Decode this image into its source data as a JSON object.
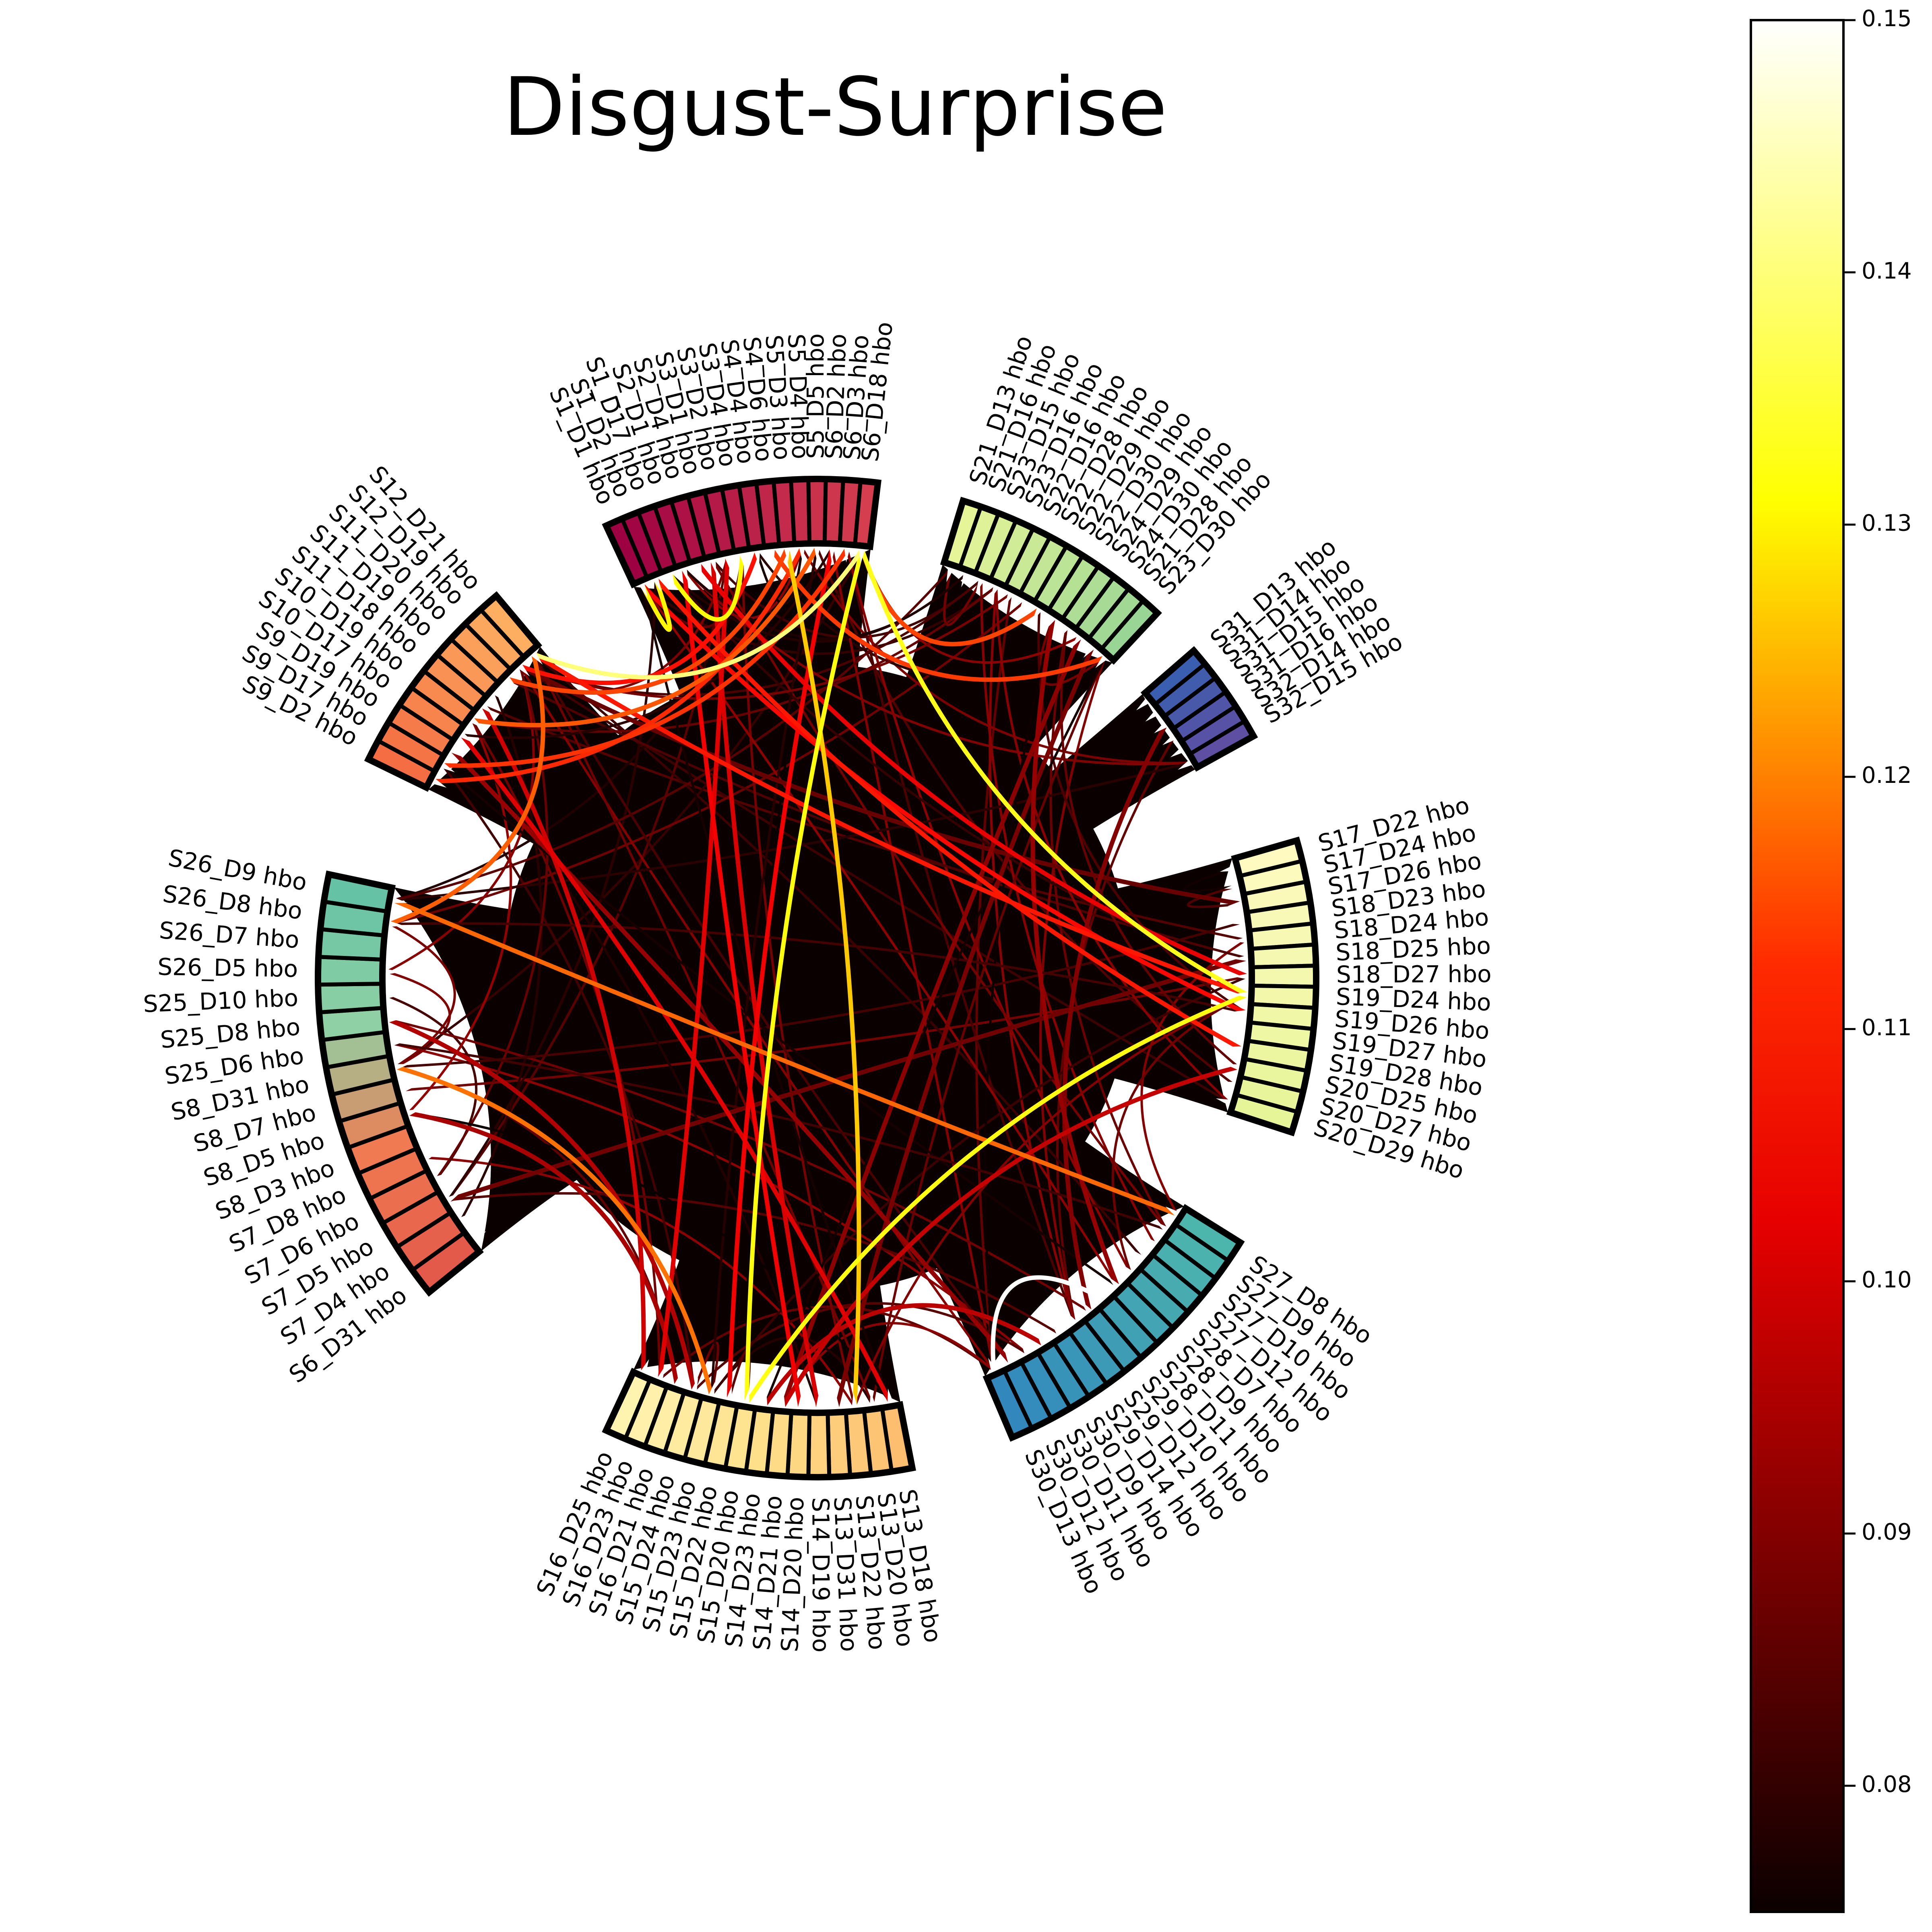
{
  "chart_data": {
    "type": "chord",
    "title": "Disgust-Surprise",
    "colorbar": {
      "cmap": "hot",
      "range": [
        0.075,
        0.15
      ],
      "ticks": [
        "0.08",
        "0.09",
        "0.10",
        "0.11",
        "0.12",
        "0.13",
        "0.14",
        "0.15"
      ]
    },
    "groups": [
      {
        "start_deg": 83,
        "end_deg": 115,
        "labels": [
          "S1_D1 hbo",
          "S1_D2 hbo",
          "S1_D17 hbo",
          "S2_D1 hbo",
          "S2_D4 hbo",
          "S3_D1 hbo",
          "S3_D2 hbo",
          "S3_D4 hbo",
          "S4_D4 hbo",
          "S4_D6 hbo",
          "S5_D3 hbo",
          "S5_D4 hbo",
          "S5_D5 hbo",
          "S6_D2 hbo",
          "S6_D3 hbo",
          "S6_D18 hbo"
        ]
      },
      {
        "start_deg": 130,
        "end_deg": 154,
        "labels": [
          "S9_D2 hbo",
          "S9_D17 hbo",
          "S9_D19 hbo",
          "S10_D17 hbo",
          "S10_D19 hbo",
          "S11_D18 hbo",
          "S11_D19 hbo",
          "S11_D20 hbo",
          "S12_D19 hbo",
          "S12_D21 hbo"
        ]
      },
      {
        "start_deg": 168,
        "end_deg": 219,
        "labels": [
          "S6_D31 hbo",
          "S7_D4 hbo",
          "S7_D5 hbo",
          "S7_D6 hbo",
          "S7_D8 hbo",
          "S8_D3 hbo",
          "S8_D5 hbo",
          "S8_D7 hbo",
          "S8_D31 hbo",
          "S25_D6 hbo",
          "S25_D8 hbo",
          "S25_D10 hbo",
          "S26_D5 hbo",
          "S26_D7 hbo",
          "S26_D8 hbo",
          "S26_D9 hbo"
        ]
      },
      {
        "start_deg": 245,
        "end_deg": 281,
        "labels": [
          "S13_D18 hbo",
          "S13_D20 hbo",
          "S13_D22 hbo",
          "S13_D31 hbo",
          "S14_D19 hbo",
          "S14_D20 hbo",
          "S14_D21 hbo",
          "S14_D23 hbo",
          "S15_D20 hbo",
          "S15_D22 hbo",
          "S15_D23 hbo",
          "S15_D24 hbo",
          "S16_D21 hbo",
          "S16_D23 hbo",
          "S16_D25 hbo"
        ]
      },
      {
        "start_deg": 293,
        "end_deg": 328,
        "labels": [
          "S27_D8 hbo",
          "S27_D9 hbo",
          "S27_D10 hbo",
          "S27_D12 hbo",
          "S28_D7 hbo",
          "S28_D9 hbo",
          "S28_D11 hbo",
          "S29_D10 hbo",
          "S29_D12 hbo",
          "S29_D14 hbo",
          "S30_D9 hbo",
          "S30_D11 hbo",
          "S30_D12 hbo",
          "S30_D13 hbo"
        ]
      },
      {
        "start_deg": 342,
        "end_deg": 376,
        "labels": [
          "S17_D22 hbo",
          "S17_D24 hbo",
          "S17_D26 hbo",
          "S18_D23 hbo",
          "S18_D24 hbo",
          "S18_D25 hbo",
          "S18_D27 hbo",
          "S19_D24 hbo",
          "S19_D26 hbo",
          "S19_D27 hbo",
          "S19_D28 hbo",
          "S20_D25 hbo",
          "S20_D27 hbo",
          "S20_D29 hbo"
        ]
      },
      {
        "start_deg": 29,
        "end_deg": 41,
        "labels": [
          "S31_D13 hbo",
          "S31_D14 hbo",
          "S31_D15 hbo",
          "S31_D16 hbo",
          "S32_D14 hbo",
          "S32_D15 hbo"
        ]
      },
      {
        "start_deg": 47,
        "end_deg": 73,
        "labels": [
          "S21_D13 hbo",
          "S21_D16 hbo",
          "S23_D15 hbo",
          "S23_D16 hbo",
          "S22_D16 hbo",
          "S22_D28 hbo",
          "S22_D29 hbo",
          "S22_D30 hbo",
          "S24_D29 hbo",
          "S24_D30 hbo",
          "S21_D28 hbo",
          "S23_D30 hbo"
        ]
      }
    ],
    "highlighted_links": [
      {
        "a": "S30_D13 hbo",
        "b": "S28_D11 hbo",
        "value": 0.15
      },
      {
        "a": "S19_D24 hbo",
        "b": "S6_D18 hbo",
        "value": 0.133
      },
      {
        "a": "S19_D24 hbo",
        "b": "S15_D20 hbo",
        "value": 0.132
      },
      {
        "a": "S15_D20 hbo",
        "b": "S6_D18 hbo",
        "value": 0.132
      },
      {
        "a": "S1_D17 hbo",
        "b": "S3_D4 hbo",
        "value": 0.131
      },
      {
        "a": "S1_D1 hbo",
        "b": "S1_D2 hbo",
        "value": 0.13
      },
      {
        "a": "S12_D21 hbo",
        "b": "S6_D18 hbo",
        "value": 0.14
      },
      {
        "a": "S13_D22 hbo",
        "b": "S5_D3 hbo",
        "value": 0.125
      },
      {
        "a": "S8_D31 hbo",
        "b": "S15_D23 hbo",
        "value": 0.115
      },
      {
        "a": "S12_D21 hbo",
        "b": "S19_D24 hbo",
        "value": 0.105
      },
      {
        "a": "S12_D21 hbo",
        "b": "S26_D8 hbo",
        "value": 0.113
      },
      {
        "a": "S26_D9 hbo",
        "b": "S27_D8 hbo",
        "value": 0.114
      },
      {
        "a": "S1_D1 hbo",
        "b": "S19_D26 hbo",
        "value": 0.103
      },
      {
        "a": "S1_D2 hbo",
        "b": "S19_D28 hbo",
        "value": 0.105
      },
      {
        "a": "S6_D18 hbo",
        "b": "S22_D29 hbo",
        "value": 0.11
      },
      {
        "a": "S6_D3 hbo",
        "b": "S9_D17 hbo",
        "value": 0.108
      },
      {
        "a": "S5_D5 hbo",
        "b": "S10_D19 hbo",
        "value": 0.112
      },
      {
        "a": "S5_D3 hbo",
        "b": "S11_D20 hbo",
        "value": 0.11
      },
      {
        "a": "S4_D6 hbo",
        "b": "S23_D30 hbo",
        "value": 0.109
      },
      {
        "a": "S2_D1 hbo",
        "b": "S14_D20 hbo",
        "value": 0.1
      },
      {
        "a": "S3_D2 hbo",
        "b": "S16_D23 hbo",
        "value": 0.098
      },
      {
        "a": "S6_D2 hbo",
        "b": "S15_D22 hbo",
        "value": 0.1
      },
      {
        "a": "S9_D19 hbo",
        "b": "S30_D12 hbo",
        "value": 0.09
      },
      {
        "a": "S7_D5 hbo",
        "b": "S18_D25 hbo",
        "value": 0.086
      },
      {
        "a": "S14_D21 hbo",
        "b": "S20_D25 hbo",
        "value": 0.095
      },
      {
        "a": "S22_D30 hbo",
        "b": "S28_D9 hbo",
        "value": 0.09
      },
      {
        "a": "S14_D23 hbo",
        "b": "S30_D9 hbo",
        "value": 0.094
      },
      {
        "a": "S31_D15 hbo",
        "b": "S29_D10 hbo",
        "value": 0.088
      },
      {
        "a": "S12_D19 hbo",
        "b": "S17_D26 hbo",
        "value": 0.085
      },
      {
        "a": "S3_D1 hbo",
        "b": "S14_D19 hbo",
        "value": 0.097
      },
      {
        "a": "S10_D17 hbo",
        "b": "S13_D18 hbo",
        "value": 0.098
      },
      {
        "a": "S11_D18 hbo",
        "b": "S16_D25 hbo",
        "value": 0.096
      },
      {
        "a": "S24_D30 hbo",
        "b": "S14_D21 hbo",
        "value": 0.089
      },
      {
        "a": "S4_D4 hbo",
        "b": "S12_D19 hbo",
        "value": 0.104
      },
      {
        "a": "S5_D4 hbo",
        "b": "S9_D2 hbo",
        "value": 0.107
      },
      {
        "a": "S8_D5 hbo",
        "b": "S16_D21 hbo",
        "value": 0.092
      },
      {
        "a": "S25_D8 hbo",
        "b": "S15_D24 hbo",
        "value": 0.093
      },
      {
        "a": "S2_D4 hbo",
        "b": "S18_D27 hbo",
        "value": 0.099
      },
      {
        "a": "S21_D28 hbo",
        "b": "S13_D31 hbo",
        "value": 0.087
      }
    ]
  }
}
